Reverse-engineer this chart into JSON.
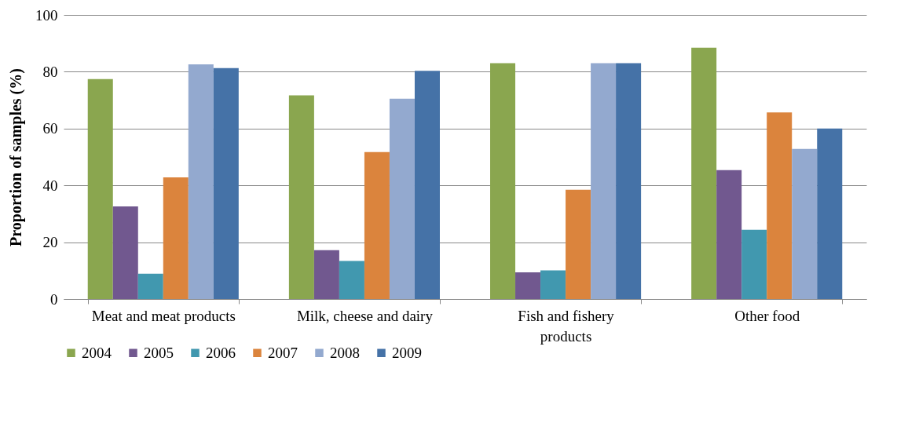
{
  "chart_data": {
    "type": "bar",
    "ylabel": "Proportion of samples (%)",
    "categories": [
      "Meat and meat products",
      "Milk, cheese and dairy",
      "Fish and fishery\nproducts",
      "Other food"
    ],
    "series": [
      {
        "name": "2004",
        "color": "#8aa64f",
        "values": [
          77.4,
          71.7,
          83.0,
          88.5
        ]
      },
      {
        "name": "2005",
        "color": "#71588f",
        "values": [
          32.6,
          17.2,
          9.4,
          45.4
        ]
      },
      {
        "name": "2006",
        "color": "#4198af",
        "values": [
          8.9,
          13.4,
          10.1,
          24.4
        ]
      },
      {
        "name": "2007",
        "color": "#db843d",
        "values": [
          42.8,
          51.7,
          38.5,
          65.7
        ]
      },
      {
        "name": "2008",
        "color": "#93a9cf",
        "values": [
          82.6,
          70.5,
          83.0,
          52.8
        ]
      },
      {
        "name": "2009",
        "color": "#4572a7",
        "values": [
          81.3,
          80.3,
          83.0,
          60.0
        ]
      }
    ],
    "ylim": [
      0,
      100
    ],
    "yticks": [
      0,
      20,
      40,
      60,
      80,
      100
    ],
    "grid": "y",
    "legend": "bottom"
  }
}
